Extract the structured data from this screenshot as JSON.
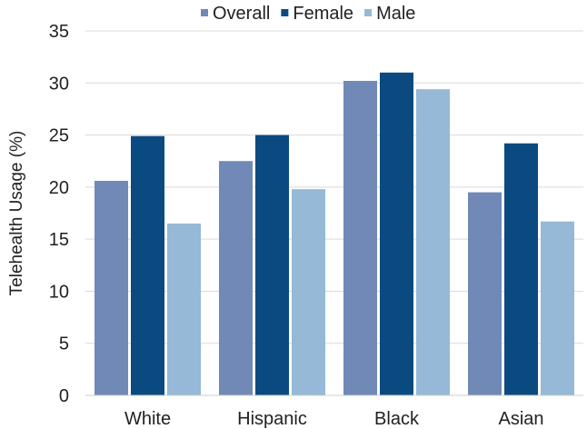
{
  "chart_data": {
    "type": "bar",
    "title": "",
    "xlabel": "",
    "ylabel": "Telehealth Usage (%)",
    "ylim": [
      0,
      35
    ],
    "yticks": [
      0,
      5,
      10,
      15,
      20,
      25,
      30,
      35
    ],
    "grid": true,
    "legend_position": "top",
    "categories": [
      "White",
      "Hispanic",
      "Black",
      "Asian"
    ],
    "series": [
      {
        "name": "Overall",
        "color": "#7189b6",
        "values": [
          20.6,
          22.5,
          30.2,
          19.5
        ]
      },
      {
        "name": "Female",
        "color": "#0a4a80",
        "values": [
          24.9,
          25.0,
          31.0,
          24.2
        ]
      },
      {
        "name": "Male",
        "color": "#95b9d6",
        "values": [
          16.5,
          19.8,
          29.4,
          16.7
        ]
      }
    ]
  }
}
